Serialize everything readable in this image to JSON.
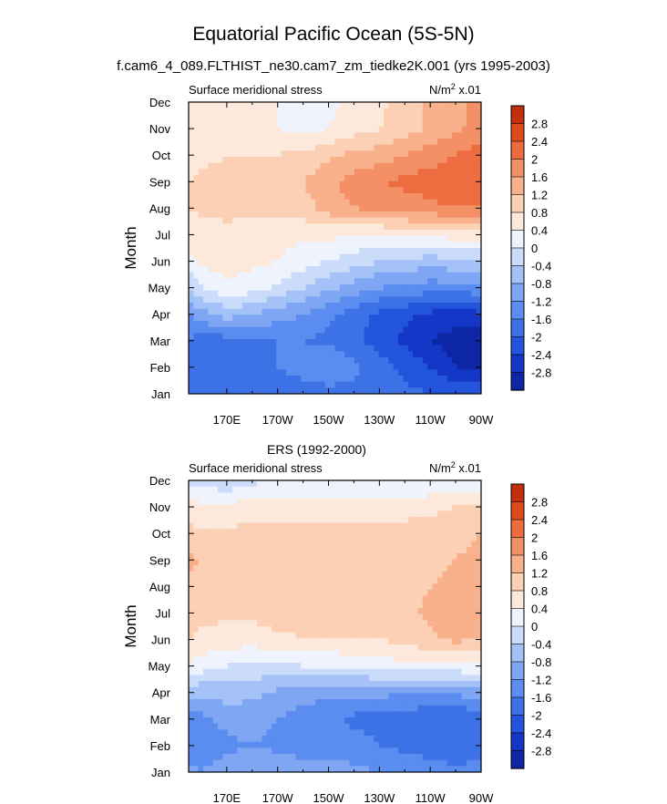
{
  "title": "Equatorial Pacific Ocean (5S-5N)",
  "subtitle": "f.cam6_4_089.FLTHIST_ne30.cam7_zm_tiedke2K.001 (yrs 1995-2003)",
  "colors": {
    "levels": [
      "#0a1a78",
      "#0d26a6",
      "#1437c8",
      "#2355dc",
      "#3d72e6",
      "#5b8cef",
      "#7ea6f3",
      "#a4c2f7",
      "#cadcfa",
      "#eef3fd",
      "#fde9dc",
      "#fbd0b5",
      "#f8b18b",
      "#f39066",
      "#ee6d40",
      "#e0491c",
      "#c22e0e",
      "#9a1a06",
      "#7a0f03"
    ]
  },
  "chart_data": [
    {
      "type": "contour",
      "panel_title": "",
      "left_label": "Surface meridional stress",
      "right_label": "N/m",
      "right_label_sup": "2",
      "right_label_suffix": " x.01",
      "ylabel": "Month",
      "x_ticks": [
        "170E",
        "170W",
        "150W",
        "130W",
        "110W",
        "90W"
      ],
      "y_ticks": [
        "Jan",
        "Feb",
        "Mar",
        "Apr",
        "May",
        "Jun",
        "Jul",
        "Aug",
        "Sep",
        "Oct",
        "Nov",
        "Dec"
      ],
      "xlim": [
        "155E",
        "90W"
      ],
      "colorbar_labels": [
        "-2.8",
        "-2.4",
        "-2",
        "-1.6",
        "-1.2",
        "-0.8",
        "-0.4",
        "0",
        "0.4",
        "0.8",
        "1.2",
        "1.6",
        "2",
        "2.4",
        "2.8"
      ],
      "x_lon": [
        155,
        160,
        170,
        180,
        190,
        200,
        210,
        220,
        230,
        240,
        250,
        260,
        270
      ],
      "values": [
        [
          -1.8,
          -2.0,
          -2.0,
          -2.0,
          -1.9,
          -1.8,
          -1.8,
          -1.7,
          -1.8,
          -1.9,
          -2.0,
          -2.1,
          -2.0
        ],
        [
          -1.7,
          -1.9,
          -2.0,
          -1.8,
          -1.6,
          -1.4,
          -1.2,
          -1.5,
          -1.8,
          -2.1,
          -2.4,
          -2.8,
          -2.8
        ],
        [
          -1.6,
          -1.8,
          -1.8,
          -1.7,
          -1.6,
          -1.6,
          -1.7,
          -1.9,
          -2.2,
          -2.5,
          -2.8,
          -3.0,
          -3.0
        ],
        [
          -1.2,
          -1.0,
          -0.6,
          -0.8,
          -1.0,
          -1.2,
          -1.5,
          -1.8,
          -2.1,
          -2.3,
          -2.5,
          -2.6,
          -2.5
        ],
        [
          -0.4,
          0.0,
          0.3,
          0.2,
          -0.1,
          -0.4,
          -0.7,
          -1.0,
          -1.2,
          -1.3,
          -1.4,
          -1.4,
          -1.3
        ],
        [
          0.3,
          0.5,
          0.6,
          0.5,
          0.4,
          0.2,
          0.0,
          -0.2,
          -0.4,
          -0.5,
          -0.6,
          -0.5,
          -0.5
        ],
        [
          0.5,
          0.6,
          0.7,
          0.6,
          0.5,
          0.5,
          0.5,
          0.4,
          0.4,
          0.5,
          0.5,
          0.6,
          0.7
        ],
        [
          0.8,
          0.9,
          0.9,
          0.9,
          0.9,
          1.0,
          1.4,
          1.6,
          1.7,
          1.8,
          1.9,
          2.0,
          2.0
        ],
        [
          0.8,
          0.9,
          0.9,
          0.9,
          1.0,
          1.2,
          1.5,
          1.8,
          2.0,
          2.1,
          2.2,
          2.3,
          2.4
        ],
        [
          0.6,
          0.7,
          0.8,
          0.8,
          0.8,
          0.9,
          1.1,
          1.3,
          1.4,
          1.6,
          1.8,
          2.0,
          2.2
        ],
        [
          0.5,
          0.5,
          0.5,
          0.5,
          0.4,
          0.3,
          0.4,
          0.6,
          0.8,
          1.0,
          1.3,
          1.5,
          1.8
        ],
        [
          0.6,
          0.6,
          0.5,
          0.5,
          0.4,
          0.3,
          0.3,
          0.5,
          0.7,
          1.0,
          1.3,
          1.5,
          1.7
        ]
      ]
    },
    {
      "type": "contour",
      "panel_title": "ERS (1992-2000)",
      "left_label": "Surface meridional stress",
      "right_label": "N/m",
      "right_label_sup": "2",
      "right_label_suffix": " x.01",
      "ylabel": "Month",
      "x_ticks": [
        "170E",
        "170W",
        "150W",
        "130W",
        "110W",
        "90W"
      ],
      "y_ticks": [
        "Jan",
        "Feb",
        "Mar",
        "Apr",
        "May",
        "Jun",
        "Jul",
        "Aug",
        "Sep",
        "Oct",
        "Nov",
        "Dec"
      ],
      "xlim": [
        "155E",
        "90W"
      ],
      "colorbar_labels": [
        "-2.8",
        "-2.4",
        "-2",
        "-1.6",
        "-1.2",
        "-0.8",
        "-0.4",
        "0",
        "0.4",
        "0.8",
        "1.2",
        "1.6",
        "2",
        "2.4",
        "2.8"
      ],
      "x_lon": [
        155,
        160,
        170,
        180,
        190,
        200,
        210,
        220,
        230,
        240,
        250,
        260,
        270
      ],
      "values": [
        [
          -1.1,
          -1.2,
          -1.0,
          -0.8,
          -0.9,
          -1.0,
          -1.1,
          -1.1,
          -1.2,
          -1.3,
          -1.4,
          -1.5,
          -1.4
        ],
        [
          -1.5,
          -1.4,
          -1.3,
          -1.2,
          -1.3,
          -1.4,
          -1.3,
          -1.4,
          -1.6,
          -1.7,
          -1.8,
          -1.9,
          -1.8
        ],
        [
          -1.6,
          -1.3,
          -1.1,
          -1.0,
          -1.2,
          -1.4,
          -1.5,
          -1.7,
          -1.8,
          -1.9,
          -2.0,
          -2.0,
          -1.9
        ],
        [
          -0.6,
          -0.7,
          -0.6,
          -0.7,
          -0.9,
          -1.0,
          -1.1,
          -1.1,
          -1.1,
          -1.1,
          -1.1,
          -1.1,
          -1.0
        ],
        [
          0.3,
          0.2,
          0.0,
          -0.1,
          -0.1,
          0.0,
          0.0,
          0.1,
          0.2,
          0.3,
          0.3,
          0.3,
          0.3
        ],
        [
          0.8,
          0.7,
          0.6,
          0.6,
          0.7,
          0.8,
          0.8,
          0.8,
          0.8,
          0.9,
          1.1,
          1.3,
          1.2
        ],
        [
          1.0,
          0.9,
          0.9,
          0.9,
          1.0,
          1.0,
          1.0,
          1.0,
          1.0,
          1.1,
          1.3,
          1.5,
          1.5
        ],
        [
          1.1,
          1.0,
          1.0,
          1.0,
          1.0,
          1.1,
          1.1,
          1.1,
          1.0,
          1.0,
          1.2,
          1.3,
          1.4
        ],
        [
          1.3,
          1.2,
          1.0,
          0.9,
          1.0,
          1.1,
          1.2,
          1.2,
          1.1,
          1.1,
          1.1,
          1.2,
          1.3
        ],
        [
          0.9,
          0.9,
          0.9,
          0.9,
          0.9,
          1.0,
          1.0,
          1.0,
          1.0,
          1.0,
          1.0,
          1.1,
          1.2
        ],
        [
          0.6,
          0.5,
          0.5,
          0.6,
          0.6,
          0.6,
          0.6,
          0.6,
          0.6,
          0.6,
          0.7,
          0.8,
          0.8
        ],
        [
          -0.1,
          -0.2,
          -0.3,
          -0.1,
          0.0,
          0.1,
          0.1,
          0.1,
          0.1,
          0.1,
          0.0,
          -0.1,
          -0.1
        ]
      ]
    }
  ]
}
